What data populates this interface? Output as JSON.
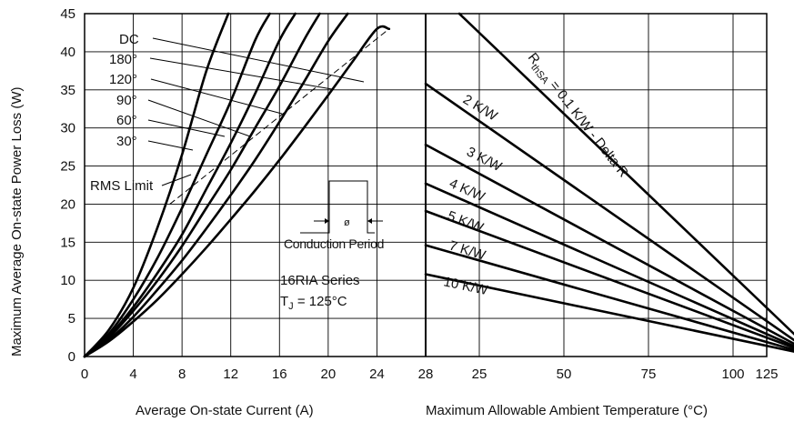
{
  "chart_data": [
    {
      "type": "line",
      "xlabel": "Average On-state Current (A)",
      "ylabel": "Maximum Average On-state Power Loss (W)",
      "xlim": [
        0,
        28
      ],
      "ylim": [
        0,
        45
      ],
      "x_ticks": [
        "0",
        "4",
        "8",
        "12",
        "16",
        "20",
        "24",
        "28"
      ],
      "y_ticks": [
        "0",
        "5",
        "10",
        "15",
        "20",
        "25",
        "30",
        "35",
        "40",
        "45"
      ],
      "grid": true,
      "series": [
        {
          "name": "30°",
          "x": [
            0,
            2,
            4,
            6,
            8,
            10,
            11.8
          ],
          "y": [
            0,
            3.5,
            9,
            17,
            26.5,
            37.5,
            45
          ]
        },
        {
          "name": "60°",
          "x": [
            0,
            2,
            4,
            6,
            8,
            10,
            12,
            14,
            15.2
          ],
          "y": [
            0,
            3,
            7.5,
            13,
            19.5,
            26.5,
            33.5,
            41.5,
            45
          ]
        },
        {
          "name": "90°",
          "x": [
            0,
            2,
            4,
            6,
            8,
            10,
            12,
            14,
            16,
            17.3
          ],
          "y": [
            0,
            2.7,
            6.5,
            11,
            16,
            22,
            28,
            34.5,
            41.5,
            45
          ]
        },
        {
          "name": "120°",
          "x": [
            0,
            2,
            4,
            6,
            8,
            10,
            12,
            14,
            16,
            18,
            19.3
          ],
          "y": [
            0,
            2.5,
            6,
            10,
            14.5,
            19.5,
            24.5,
            30,
            35.5,
            41.5,
            45
          ]
        },
        {
          "name": "180°",
          "x": [
            0,
            2,
            4,
            6,
            8,
            10,
            12,
            14,
            16,
            18,
            20,
            21.6
          ],
          "y": [
            0,
            2.2,
            5.2,
            8.8,
            12.6,
            16.8,
            21.2,
            25.8,
            30.8,
            36,
            41.4,
            45
          ]
        },
        {
          "name": "DC",
          "x": [
            0,
            2,
            4,
            6,
            8,
            10,
            12,
            14,
            16,
            18,
            20,
            22,
            24,
            25
          ],
          "y": [
            0,
            2,
            4.6,
            7.5,
            10.8,
            14.3,
            18,
            21.8,
            25.8,
            30,
            34.3,
            38.7,
            43,
            43
          ]
        }
      ],
      "rms_limit": {
        "x": [
          7,
          25
        ],
        "y": [
          20,
          43
        ]
      },
      "annotations": {
        "rms_label": "RMS Limit",
        "inset_phi": "ø",
        "inset_caption": "Conduction Period",
        "series_name": "16RIA Series",
        "tj_label": "T",
        "tj_sub": "J",
        "tj_value": " = 125°C"
      }
    },
    {
      "type": "line",
      "xlabel": "Maximum Allowable Ambient Temperature (°C)",
      "xlim": [
        28,
        125
      ],
      "x_ticks": [
        "28",
        "25",
        "50",
        "75",
        "100",
        "125"
      ],
      "note": "x axis starts at 28 at left edge, then 25, 50, 75, 100, 125",
      "ylim": [
        0,
        45
      ],
      "series": [
        {
          "name": "R thSA = 0.1 K/W - Delta R",
          "x_start_y": 45
        },
        {
          "name": "2 K/W",
          "x_start_y": 35.8
        },
        {
          "name": "3 K/W",
          "x_start_y": 27.8
        },
        {
          "name": "4 K/W",
          "x_start_y": 22.7
        },
        {
          "name": "5 K/W",
          "x_start_y": 19.1
        },
        {
          "name": "7 K/W",
          "x_start_y": 14.6
        },
        {
          "name": "10 K/W",
          "x_start_y": 10.8
        }
      ],
      "labels": {
        "r_main": "R",
        "r_sub": "thSA",
        "r_rest": " = 0.1 K/W - Delta R",
        "l2": "2 K/W",
        "l3": "3 K/W",
        "l4": "4 K/W",
        "l5": "5 K/W",
        "l7": "7 K/W",
        "l10": "10 K/W"
      }
    }
  ]
}
